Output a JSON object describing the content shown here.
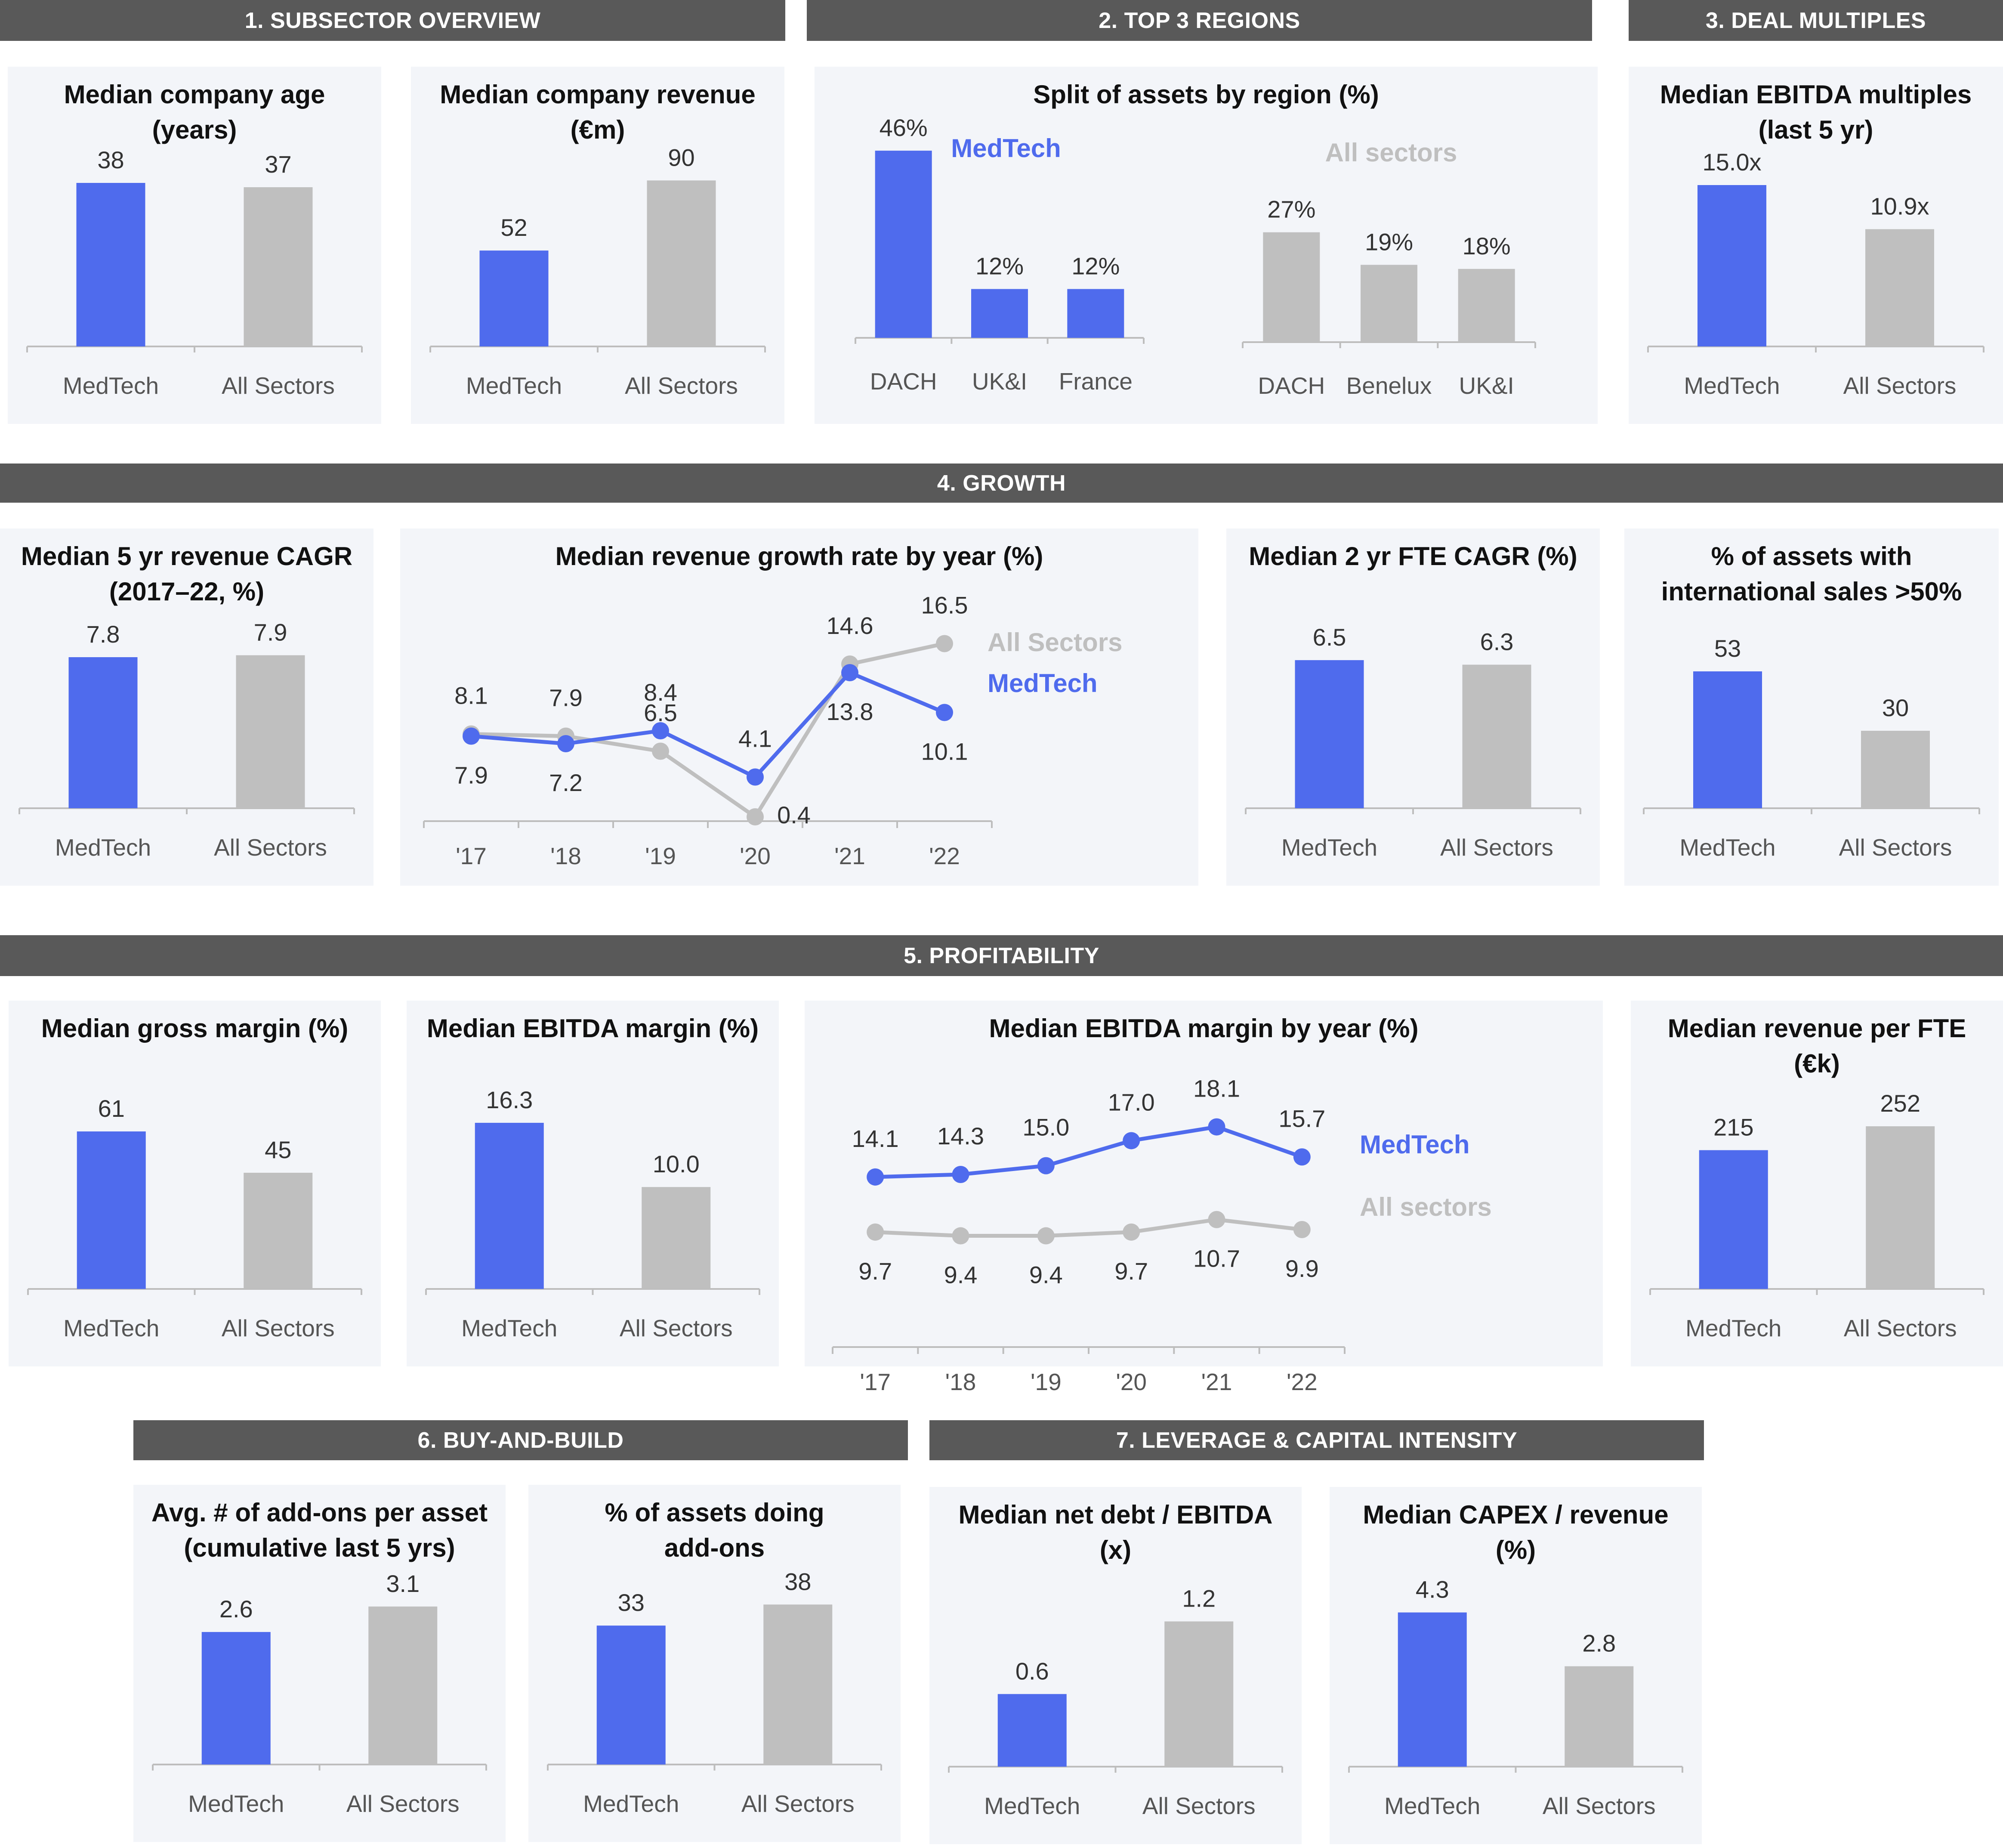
{
  "colors": {
    "medtech": "#4f6bed",
    "all": "#bfbfbf",
    "axis": "#bdbdbd",
    "header": "#595959",
    "card": "#f3f5f9"
  },
  "sections": [
    {
      "id": "s1",
      "label": "1. SUBSECTOR OVERVIEW"
    },
    {
      "id": "s2",
      "label": "2. TOP 3 REGIONS"
    },
    {
      "id": "s3",
      "label": "3. DEAL MULTIPLES"
    },
    {
      "id": "s4",
      "label": "4. GROWTH"
    },
    {
      "id": "s5",
      "label": "5.  PROFITABILITY"
    },
    {
      "id": "s6",
      "label": "6. BUY-AND-BUILD"
    },
    {
      "id": "s7",
      "label": "7. LEVERAGE & CAPITAL INTENSITY"
    }
  ],
  "chart_data": [
    {
      "id": "c1",
      "type": "bar",
      "title": [
        "Median company age",
        "(years)"
      ],
      "categories": [
        "MedTech",
        "All Sectors"
      ],
      "values": [
        38,
        37
      ],
      "labels": [
        "38",
        "37"
      ],
      "ylim": [
        0,
        45
      ]
    },
    {
      "id": "c2",
      "type": "bar",
      "title": [
        "Median company revenue",
        "(€m)"
      ],
      "categories": [
        "MedTech",
        "All Sectors"
      ],
      "values": [
        52,
        90
      ],
      "labels": [
        "52",
        "90"
      ],
      "ylim": [
        0,
        105
      ]
    },
    {
      "id": "c3",
      "type": "bar",
      "title": [
        "Split of assets by region (%)"
      ],
      "groups": [
        {
          "name": "MedTech",
          "categories": [
            "DACH",
            "UK&I",
            "France"
          ],
          "values": [
            46,
            12,
            12
          ],
          "labels": [
            "46%",
            "12%",
            "12%"
          ]
        },
        {
          "name": "All sectors",
          "categories": [
            "DACH",
            "Benelux",
            "UK&I"
          ],
          "values": [
            27,
            19,
            18
          ],
          "labels": [
            "27%",
            "19%",
            "18%"
          ]
        }
      ],
      "ylim": [
        0,
        55
      ]
    },
    {
      "id": "c4",
      "type": "bar",
      "title": [
        "Median EBITDA multiples",
        "(last 5 yr)"
      ],
      "categories": [
        "MedTech",
        "All Sectors"
      ],
      "values": [
        15.0,
        10.9
      ],
      "labels": [
        "15.0x",
        "10.9x"
      ],
      "ylim": [
        0,
        18
      ]
    },
    {
      "id": "c5",
      "type": "bar",
      "title": [
        "Median 5 yr revenue CAGR",
        "(2017–22, %)"
      ],
      "categories": [
        "MedTech",
        "All Sectors"
      ],
      "values": [
        7.8,
        7.9
      ],
      "labels": [
        "7.8",
        "7.9"
      ],
      "ylim": [
        0,
        10
      ]
    },
    {
      "id": "c6",
      "type": "line",
      "title": [
        "Median revenue growth rate by year (%)"
      ],
      "x": [
        "'17",
        "'18",
        "'19",
        "'20",
        "'21",
        "'22"
      ],
      "series": [
        {
          "name": "MedTech",
          "values": [
            7.9,
            7.2,
            8.4,
            4.1,
            13.8,
            10.1
          ],
          "labels": [
            "7.9",
            "7.2",
            "8.4",
            "4.1",
            "13.8",
            "10.1"
          ]
        },
        {
          "name": "All Sectors",
          "values": [
            8.1,
            7.9,
            6.5,
            0.4,
            14.6,
            16.5
          ],
          "labels": [
            "8.1",
            "7.9",
            "6.5",
            "0.4",
            "14.6",
            "16.5"
          ]
        }
      ],
      "ylim": [
        0,
        22
      ]
    },
    {
      "id": "c7",
      "type": "bar",
      "title": [
        "Median 2 yr FTE CAGR (%)"
      ],
      "categories": [
        "MedTech",
        "All Sectors"
      ],
      "values": [
        6.5,
        6.3
      ],
      "labels": [
        "6.5",
        "6.3"
      ],
      "ylim": [
        0,
        8.5
      ]
    },
    {
      "id": "c8",
      "type": "bar",
      "title": [
        "% of assets with",
        "international sales >50%"
      ],
      "categories": [
        "MedTech",
        "All Sectors"
      ],
      "values": [
        53,
        30
      ],
      "labels": [
        "53",
        "30"
      ],
      "ylim": [
        0,
        75
      ]
    },
    {
      "id": "c9",
      "type": "bar",
      "title": [
        "Median gross margin (%)"
      ],
      "categories": [
        "MedTech",
        "All Sectors"
      ],
      "values": [
        61,
        45
      ],
      "labels": [
        "61",
        "45"
      ],
      "ylim": [
        0,
        75
      ]
    },
    {
      "id": "c10",
      "type": "bar",
      "title": [
        "Median EBITDA margin (%)"
      ],
      "categories": [
        "MedTech",
        "All Sectors"
      ],
      "values": [
        16.3,
        10.0
      ],
      "labels": [
        "16.3",
        "10.0"
      ],
      "ylim": [
        0,
        19
      ]
    },
    {
      "id": "c11",
      "type": "line",
      "title": [
        "Median EBITDA margin by year (%)"
      ],
      "x": [
        "'17",
        "'18",
        "'19",
        "'20",
        "'21",
        "'22"
      ],
      "series": [
        {
          "name": "MedTech",
          "values": [
            14.1,
            14.3,
            15.0,
            17.0,
            18.1,
            15.7
          ],
          "labels": [
            "14.1",
            "14.3",
            "15.0",
            "17.0",
            "18.1",
            "15.7"
          ]
        },
        {
          "name": "All sectors",
          "values": [
            9.7,
            9.4,
            9.4,
            9.7,
            10.7,
            9.9
          ],
          "labels": [
            "9.7",
            "9.4",
            "9.4",
            "9.7",
            "10.7",
            "9.9"
          ]
        }
      ],
      "ylim": [
        0,
        22
      ]
    },
    {
      "id": "c12",
      "type": "bar",
      "title": [
        "Median revenue per FTE",
        "(€k)"
      ],
      "categories": [
        "MedTech",
        "All Sectors"
      ],
      "values": [
        215,
        252
      ],
      "labels": [
        "215",
        "252"
      ],
      "ylim": [
        0,
        300
      ]
    },
    {
      "id": "c13",
      "type": "bar",
      "title": [
        "Avg. # of add-ons per asset",
        "(cumulative last 5 yrs)"
      ],
      "categories": [
        "MedTech",
        "All Sectors"
      ],
      "values": [
        2.6,
        3.1
      ],
      "labels": [
        "2.6",
        "3.1"
      ],
      "ylim": [
        0,
        3.8
      ]
    },
    {
      "id": "c14",
      "type": "bar",
      "title": [
        "% of assets doing",
        "add-ons"
      ],
      "categories": [
        "MedTech",
        "All Sectors"
      ],
      "values": [
        33,
        38
      ],
      "labels": [
        "33",
        "38"
      ],
      "ylim": [
        0,
        46
      ]
    },
    {
      "id": "c15",
      "type": "bar",
      "title": [
        "Median net debt / EBITDA",
        "(x)"
      ],
      "categories": [
        "MedTech",
        "All Sectors"
      ],
      "values": [
        0.6,
        1.2
      ],
      "labels": [
        "0.6",
        "1.2"
      ],
      "ylim": [
        0,
        1.6
      ]
    },
    {
      "id": "c16",
      "type": "bar",
      "title": [
        "Median CAPEX / revenue",
        "(%)"
      ],
      "categories": [
        "MedTech",
        "All Sectors"
      ],
      "values": [
        4.3,
        2.8
      ],
      "labels": [
        "4.3",
        "2.8"
      ],
      "ylim": [
        0,
        5.4
      ]
    }
  ]
}
